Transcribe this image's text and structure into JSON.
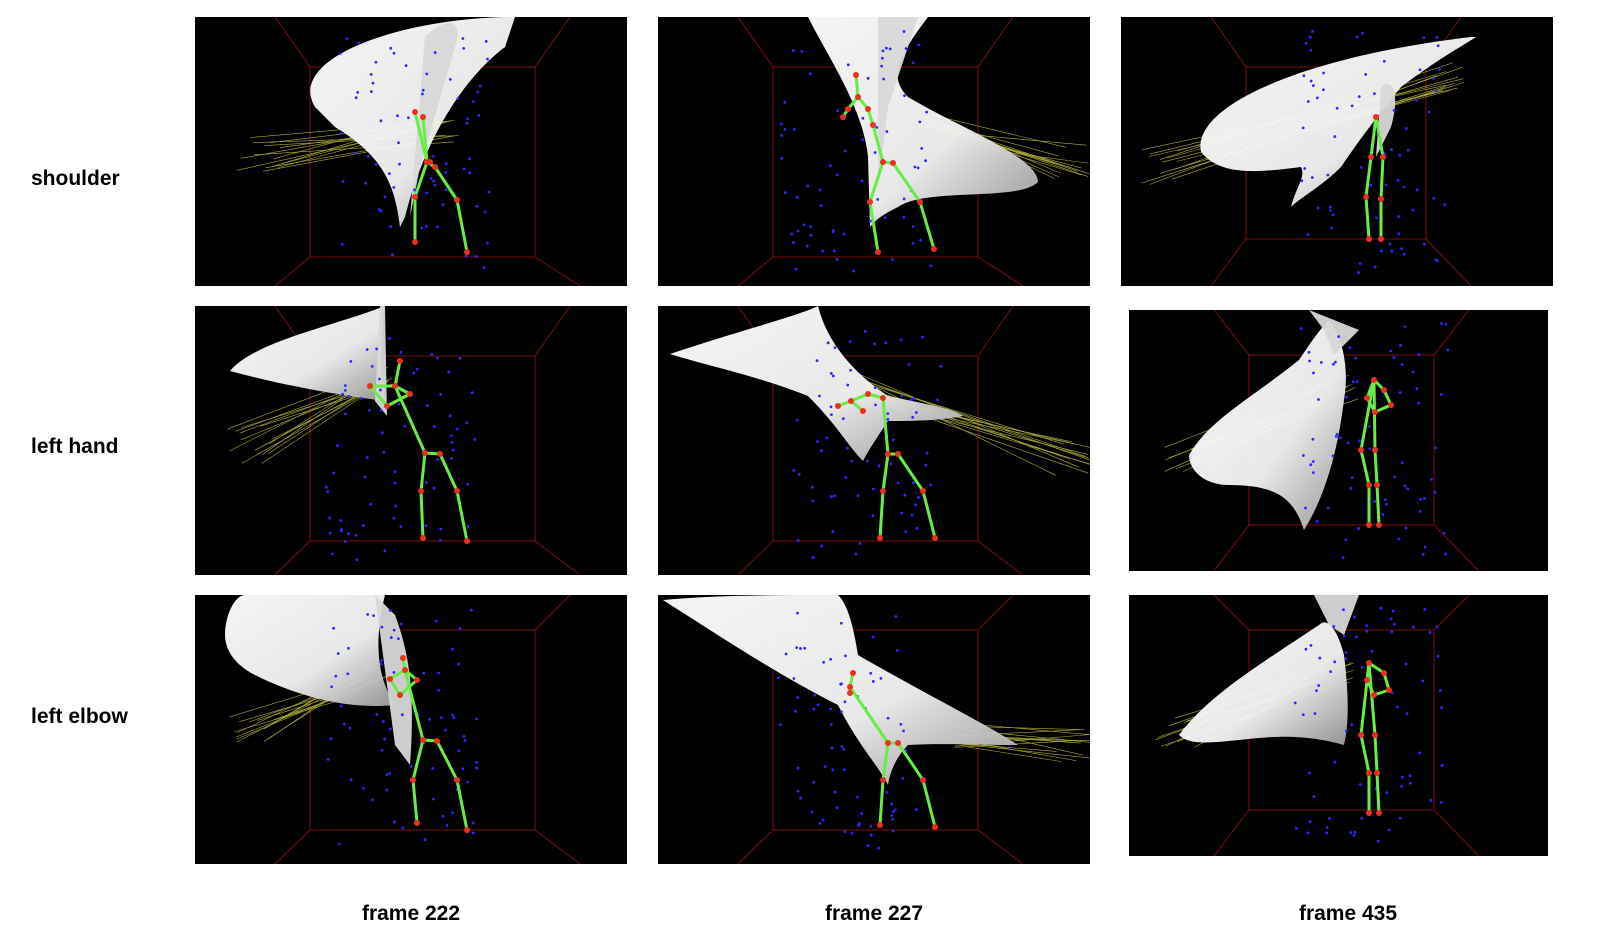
{
  "figure": {
    "row_labels": [
      "shoulder",
      "left hand",
      "left elbow"
    ],
    "column_labels": [
      "frame 222",
      "frame 227",
      "frame 435"
    ],
    "panel_background": "#000000",
    "colors": {
      "skeleton_bone": "#66ee44",
      "skeleton_joint": "#e8321c",
      "surface": "#f2f2f2",
      "point_cloud": "#2a2aff",
      "rays": "#e6e64a",
      "room_box": "#7a1010"
    },
    "panels": [
      {
        "row": "shoulder",
        "frame": "frame 222"
      },
      {
        "row": "shoulder",
        "frame": "frame 227"
      },
      {
        "row": "shoulder",
        "frame": "frame 435"
      },
      {
        "row": "left hand",
        "frame": "frame 222"
      },
      {
        "row": "left hand",
        "frame": "frame 227"
      },
      {
        "row": "left hand",
        "frame": "frame 435"
      },
      {
        "row": "left elbow",
        "frame": "frame 222"
      },
      {
        "row": "left elbow",
        "frame": "frame 227"
      },
      {
        "row": "left elbow",
        "frame": "frame 435"
      }
    ]
  }
}
